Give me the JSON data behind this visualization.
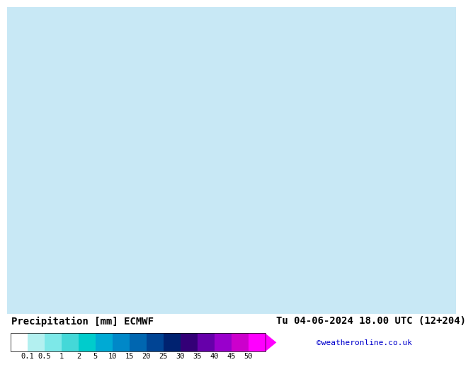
{
  "title_left": "Precipitation [mm] ECMWF",
  "title_right": "Tu 04-06-2024 18.00 UTC (12+204)",
  "credit": "©weatheronline.co.uk",
  "colorbar_tick_labels": [
    "0.1",
    "0.5",
    "1",
    "2",
    "5",
    "10",
    "15",
    "20",
    "25",
    "30",
    "35",
    "40",
    "45",
    "50"
  ],
  "colorbar_colors": [
    "#ffffff",
    "#b3f0f0",
    "#7de8e8",
    "#44d8d8",
    "#00cccc",
    "#00aad4",
    "#0088c8",
    "#0066b0",
    "#004494",
    "#002270",
    "#330077",
    "#6600aa",
    "#9900cc",
    "#cc00cc",
    "#ff00ff"
  ],
  "font_size_title": 10,
  "font_size_credit": 8,
  "font_size_ticks": 7.5
}
